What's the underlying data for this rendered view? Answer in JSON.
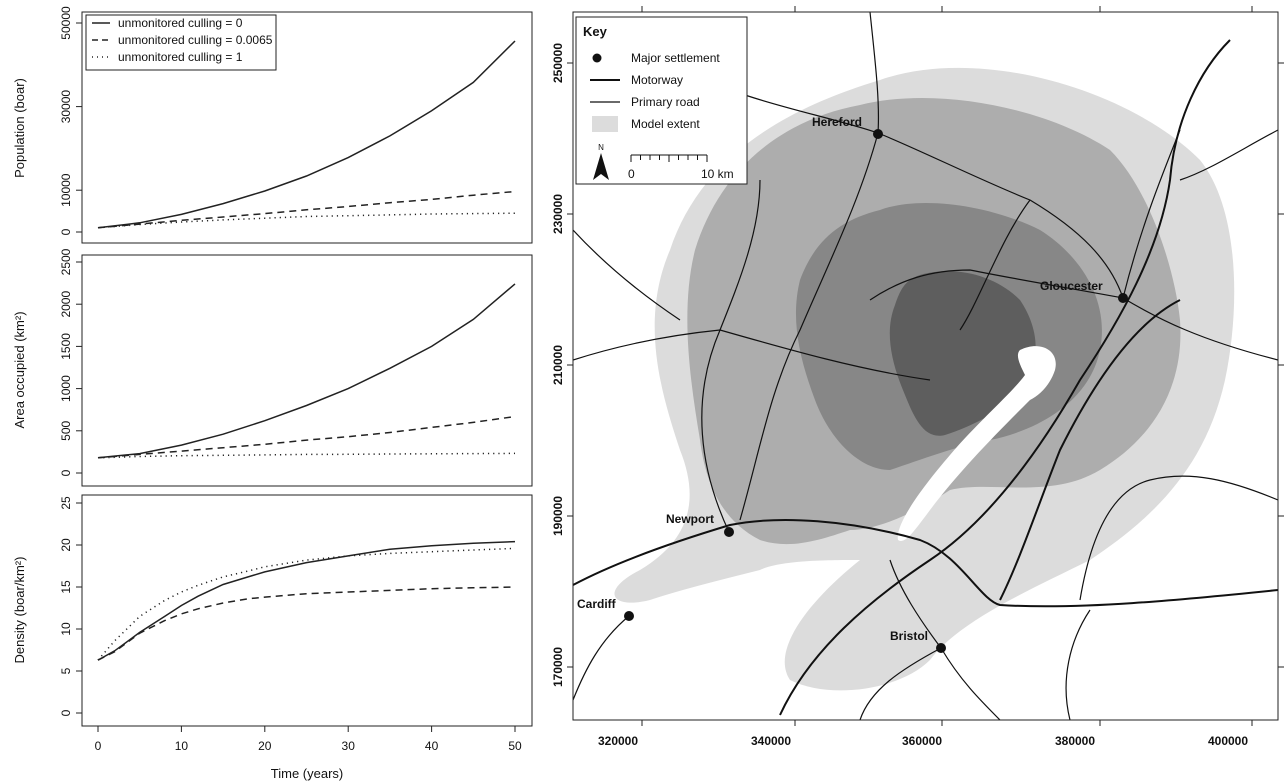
{
  "chart_data": [
    {
      "type": "line",
      "ylabel": "Population (boar)",
      "xlim": [
        0,
        50
      ],
      "ylim": [
        0,
        50000
      ],
      "yticks": [
        0,
        10000,
        30000,
        50000
      ],
      "legend_position": "top-left",
      "x": [
        0,
        5,
        10,
        15,
        20,
        25,
        30,
        35,
        40,
        45,
        50
      ],
      "series": [
        {
          "name": "unmonitored culling = 0",
          "style": "solid",
          "values": [
            1000,
            2200,
            4200,
            6800,
            9800,
            13400,
            17800,
            23000,
            29000,
            35800,
            45700
          ]
        },
        {
          "name": "unmonitored culling = 0.0065",
          "style": "dashed",
          "values": [
            1000,
            1900,
            2800,
            3600,
            4400,
            5300,
            6100,
            7000,
            7800,
            8800,
            9700
          ]
        },
        {
          "name": "unmonitored culling = 1",
          "style": "dotted",
          "values": [
            1000,
            1800,
            2400,
            2900,
            3300,
            3700,
            3900,
            4100,
            4300,
            4400,
            4500
          ]
        }
      ]
    },
    {
      "type": "line",
      "ylabel": "Area occupied (km²)",
      "xlim": [
        0,
        50
      ],
      "ylim": [
        0,
        2500
      ],
      "yticks": [
        0,
        500,
        1000,
        1500,
        2000,
        2500
      ],
      "x": [
        0,
        5,
        10,
        15,
        20,
        25,
        30,
        35,
        40,
        45,
        50
      ],
      "series": [
        {
          "name": "unmonitored culling = 0",
          "style": "solid",
          "values": [
            180,
            230,
            330,
            460,
            620,
            800,
            1000,
            1240,
            1500,
            1820,
            2240
          ]
        },
        {
          "name": "unmonitored culling = 0.0065",
          "style": "dashed",
          "values": [
            180,
            220,
            260,
            300,
            340,
            390,
            430,
            480,
            540,
            600,
            670
          ]
        },
        {
          "name": "unmonitored culling = 1",
          "style": "dotted",
          "values": [
            180,
            195,
            205,
            210,
            215,
            220,
            222,
            225,
            228,
            230,
            232
          ]
        }
      ]
    },
    {
      "type": "line",
      "xlabel": "Time (years)",
      "ylabel": "Density (boar/km²)",
      "xlim": [
        0,
        50
      ],
      "ylim": [
        0,
        25
      ],
      "yticks": [
        0,
        5,
        10,
        15,
        20,
        25
      ],
      "xticks": [
        0,
        10,
        20,
        30,
        40,
        50
      ],
      "x": [
        0,
        2,
        5,
        8,
        10,
        12,
        15,
        18,
        20,
        25,
        30,
        35,
        40,
        45,
        50
      ],
      "series": [
        {
          "name": "unmonitored culling = 0",
          "style": "solid",
          "values": [
            6.3,
            7.4,
            9.6,
            11.5,
            12.8,
            13.9,
            15.3,
            16.2,
            16.8,
            17.9,
            18.7,
            19.5,
            19.9,
            20.2,
            20.4
          ]
        },
        {
          "name": "unmonitored culling = 0.0065",
          "style": "dashed",
          "values": [
            6.3,
            7.3,
            9.5,
            11.0,
            11.8,
            12.4,
            13.1,
            13.6,
            13.8,
            14.2,
            14.4,
            14.6,
            14.8,
            14.9,
            15.0
          ]
        },
        {
          "name": "unmonitored culling = 1",
          "style": "dotted",
          "values": [
            6.3,
            8.6,
            11.5,
            13.4,
            14.4,
            15.2,
            16.2,
            16.9,
            17.4,
            18.2,
            18.7,
            19.0,
            19.2,
            19.4,
            19.6
          ]
        }
      ]
    }
  ],
  "map": {
    "x_ticks": [
      "320000",
      "340000",
      "360000",
      "380000",
      "400000"
    ],
    "y_ticks": [
      "250000",
      "230000",
      "210000",
      "190000",
      "170000"
    ],
    "key": {
      "title": "Key",
      "items": [
        "Major settlement",
        "Motorway",
        "Primary road",
        "Model extent"
      ],
      "north": "N",
      "scale_start": "0",
      "scale_end": "10 km"
    },
    "settlements": [
      "Hereford",
      "Gloucester",
      "Newport",
      "Cardiff",
      "Bristol"
    ],
    "colors": {
      "extent_light": "#dcdcdc",
      "extent_mid": "#adadad",
      "extent_dark": "#878787",
      "extent_darkest": "#5e5e5e",
      "road": "#111111"
    }
  }
}
